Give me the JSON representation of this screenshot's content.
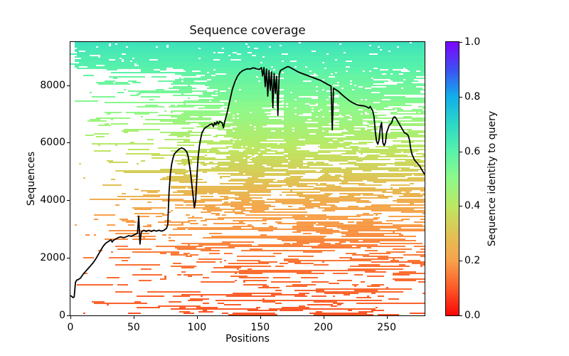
{
  "chart_data": {
    "type": "heatmap",
    "subtype": "msa-sequence-coverage-with-line",
    "title": "Sequence coverage",
    "xlabel": "Positions",
    "ylabel": "Sequences",
    "xlim": [
      0,
      280
    ],
    "ylim": [
      0,
      9500
    ],
    "xticks": [
      0,
      50,
      100,
      150,
      200,
      250
    ],
    "yticks": [
      0,
      2000,
      4000,
      6000,
      8000
    ],
    "grid": false,
    "legend": "none",
    "colorbar": {
      "label": "Sequence identity to query",
      "tick_labels": [
        "0.0",
        "0.2",
        "0.4",
        "0.6",
        "0.8",
        "1.0"
      ],
      "tick_values": [
        0.0,
        0.2,
        0.4,
        0.6,
        0.8,
        1.0
      ],
      "cmap_name": "rainbow_r",
      "cmap_stops": [
        [
          0.0,
          "#f90606"
        ],
        [
          0.1,
          "#fc5a28"
        ],
        [
          0.2,
          "#f8a24c"
        ],
        [
          0.3,
          "#e0c355"
        ],
        [
          0.4,
          "#bce863"
        ],
        [
          0.5,
          "#8ef98a"
        ],
        [
          0.6,
          "#58f2ab"
        ],
        [
          0.7,
          "#2bd8c5"
        ],
        [
          0.8,
          "#12aeeb"
        ],
        [
          0.9,
          "#3e4ff2"
        ],
        [
          1.0,
          "#7d05fc"
        ]
      ]
    },
    "heatmap": {
      "description": "MSA rows sorted by sequence identity to query; color = identity, white = no coverage",
      "total_sequences": 9500,
      "identity_max_top": 0.66,
      "identity_min_bottom": 0.1,
      "identity_profile": [
        [
          0,
          0.66
        ],
        [
          0.2,
          0.53
        ],
        [
          0.4,
          0.39
        ],
        [
          0.6,
          0.22
        ],
        [
          0.8,
          0.135
        ],
        [
          1.0,
          0.1
        ]
      ],
      "top_band_fraction": 0.1,
      "gap_bands": [
        [
          95,
          101,
          0.5
        ],
        [
          152,
          168,
          0.55
        ],
        [
          183,
          196,
          0.6
        ],
        [
          204,
          212,
          0.65
        ],
        [
          243,
          252,
          0.5
        ]
      ]
    },
    "series": [
      {
        "name": "coverage",
        "color": "#000000",
        "points": [
          [
            0,
            690
          ],
          [
            1,
            660
          ],
          [
            2,
            620
          ],
          [
            3,
            640
          ],
          [
            4,
            1150
          ],
          [
            5,
            1230
          ],
          [
            6,
            1240
          ],
          [
            8,
            1300
          ],
          [
            10,
            1430
          ],
          [
            12,
            1530
          ],
          [
            14,
            1630
          ],
          [
            16,
            1730
          ],
          [
            18,
            1830
          ],
          [
            20,
            1960
          ],
          [
            22,
            2110
          ],
          [
            24,
            2260
          ],
          [
            26,
            2410
          ],
          [
            28,
            2510
          ],
          [
            30,
            2570
          ],
          [
            32,
            2630
          ],
          [
            33,
            2550
          ],
          [
            34,
            2610
          ],
          [
            36,
            2660
          ],
          [
            38,
            2710
          ],
          [
            40,
            2730
          ],
          [
            42,
            2700
          ],
          [
            44,
            2730
          ],
          [
            46,
            2770
          ],
          [
            48,
            2750
          ],
          [
            50,
            2790
          ],
          [
            52,
            2830
          ],
          [
            53,
            2860
          ],
          [
            54,
            3450
          ],
          [
            55,
            2480
          ],
          [
            56,
            2900
          ],
          [
            58,
            2960
          ],
          [
            60,
            2920
          ],
          [
            62,
            2960
          ],
          [
            64,
            2920
          ],
          [
            66,
            2960
          ],
          [
            68,
            2930
          ],
          [
            70,
            2960
          ],
          [
            72,
            2930
          ],
          [
            74,
            2960
          ],
          [
            76,
            3030
          ],
          [
            77,
            3160
          ],
          [
            78,
            4300
          ],
          [
            79,
            4900
          ],
          [
            80,
            5250
          ],
          [
            81,
            5450
          ],
          [
            82,
            5600
          ],
          [
            84,
            5700
          ],
          [
            86,
            5780
          ],
          [
            88,
            5820
          ],
          [
            90,
            5780
          ],
          [
            92,
            5680
          ],
          [
            93,
            5550
          ],
          [
            94,
            5250
          ],
          [
            95,
            4950
          ],
          [
            96,
            4550
          ],
          [
            97,
            4150
          ],
          [
            98,
            3740
          ],
          [
            99,
            4000
          ],
          [
            100,
            4850
          ],
          [
            101,
            5500
          ],
          [
            102,
            5900
          ],
          [
            103,
            6150
          ],
          [
            104,
            6350
          ],
          [
            106,
            6500
          ],
          [
            108,
            6560
          ],
          [
            110,
            6620
          ],
          [
            112,
            6660
          ],
          [
            113,
            6560
          ],
          [
            114,
            6700
          ],
          [
            115,
            6630
          ],
          [
            116,
            6730
          ],
          [
            117,
            6650
          ],
          [
            118,
            6740
          ],
          [
            120,
            6690
          ],
          [
            121,
            6520
          ],
          [
            122,
            6740
          ],
          [
            124,
            7060
          ],
          [
            126,
            7460
          ],
          [
            128,
            7860
          ],
          [
            130,
            8110
          ],
          [
            132,
            8310
          ],
          [
            134,
            8430
          ],
          [
            136,
            8500
          ],
          [
            138,
            8540
          ],
          [
            140,
            8570
          ],
          [
            142,
            8560
          ],
          [
            144,
            8600
          ],
          [
            146,
            8590
          ],
          [
            148,
            8550
          ],
          [
            150,
            8560
          ],
          [
            151,
            8610
          ],
          [
            152,
            8320
          ],
          [
            153,
            8610
          ],
          [
            154,
            7950
          ],
          [
            155,
            8560
          ],
          [
            156,
            7620
          ],
          [
            157,
            8510
          ],
          [
            158,
            7820
          ],
          [
            159,
            8460
          ],
          [
            160,
            7220
          ],
          [
            161,
            8410
          ],
          [
            162,
            7720
          ],
          [
            163,
            8310
          ],
          [
            164,
            6950
          ],
          [
            165,
            8360
          ],
          [
            166,
            8510
          ],
          [
            168,
            8560
          ],
          [
            170,
            8610
          ],
          [
            172,
            8650
          ],
          [
            174,
            8610
          ],
          [
            176,
            8560
          ],
          [
            178,
            8510
          ],
          [
            180,
            8460
          ],
          [
            183,
            8410
          ],
          [
            186,
            8360
          ],
          [
            189,
            8310
          ],
          [
            192,
            8260
          ],
          [
            195,
            8210
          ],
          [
            198,
            8160
          ],
          [
            200,
            8110
          ],
          [
            202,
            8060
          ],
          [
            204,
            8010
          ],
          [
            206,
            7970
          ],
          [
            207,
            6450
          ],
          [
            208,
            7900
          ],
          [
            210,
            7840
          ],
          [
            212,
            7780
          ],
          [
            214,
            7700
          ],
          [
            216,
            7620
          ],
          [
            218,
            7550
          ],
          [
            220,
            7480
          ],
          [
            222,
            7420
          ],
          [
            224,
            7370
          ],
          [
            226,
            7330
          ],
          [
            228,
            7300
          ],
          [
            230,
            7290
          ],
          [
            232,
            7280
          ],
          [
            234,
            7250
          ],
          [
            236,
            7200
          ],
          [
            237,
            7260
          ],
          [
            239,
            7100
          ],
          [
            240,
            6900
          ],
          [
            241,
            6400
          ],
          [
            242,
            6050
          ],
          [
            243,
            5950
          ],
          [
            244,
            6100
          ],
          [
            245,
            6550
          ],
          [
            246,
            6700
          ],
          [
            247,
            6000
          ],
          [
            248,
            5900
          ],
          [
            249,
            6000
          ],
          [
            250,
            6350
          ],
          [
            252,
            6600
          ],
          [
            254,
            6700
          ],
          [
            255,
            6850
          ],
          [
            256,
            6900
          ],
          [
            257,
            6880
          ],
          [
            258,
            6800
          ],
          [
            260,
            6650
          ],
          [
            262,
            6500
          ],
          [
            264,
            6350
          ],
          [
            266,
            6300
          ],
          [
            267,
            6250
          ],
          [
            268,
            6100
          ],
          [
            269,
            5800
          ],
          [
            270,
            5600
          ],
          [
            272,
            5400
          ],
          [
            274,
            5300
          ],
          [
            276,
            5200
          ],
          [
            278,
            5050
          ],
          [
            280,
            4900
          ]
        ]
      }
    ]
  }
}
